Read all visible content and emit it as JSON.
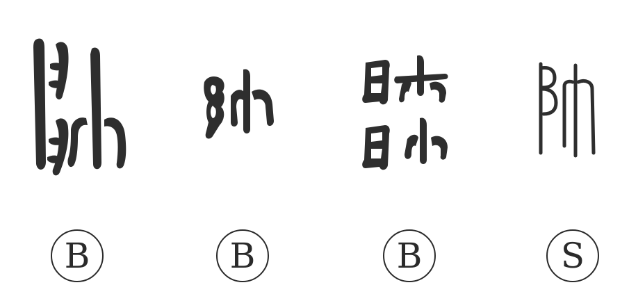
{
  "palette": {
    "ink": "#2e2e2e",
    "stroke": "#2a2a2a",
    "background": "#ffffff"
  },
  "glyphs": [
    {
      "style": "bronze-tall-variant",
      "badge": "B"
    },
    {
      "style": "bronze-compact-variant",
      "badge": "B"
    },
    {
      "style": "bronze-stacked-variant",
      "badge": "B"
    },
    {
      "style": "seal-variant",
      "badge": "S"
    }
  ]
}
